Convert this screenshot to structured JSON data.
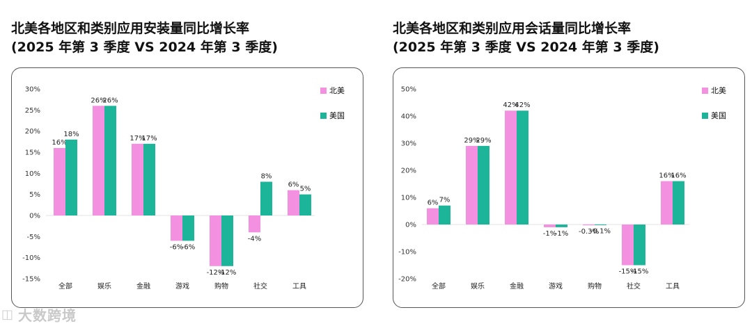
{
  "colors": {
    "north_america": "#f390e0",
    "usa": "#1db59a"
  },
  "watermark": {
    "icon": "wechat-logo-icon",
    "text": "大数跨境"
  },
  "chart_data": [
    {
      "type": "bar",
      "title_line1": "北美各地区和类别应用安装量同比增长率",
      "title_line2": "(2025 年第 3 季度 VS 2024 年第 3 季度)",
      "categories": [
        "全部",
        "娱乐",
        "金融",
        "游戏",
        "购物",
        "社交",
        "工具"
      ],
      "series": [
        {
          "name": "北美",
          "values": [
            16,
            26,
            17,
            -6,
            -12,
            -4,
            6
          ],
          "labels": [
            "16%",
            "26%",
            "17%",
            "-6%",
            "-12%",
            "-4%",
            "6%"
          ]
        },
        {
          "name": "美国",
          "values": [
            18,
            26,
            17,
            -6,
            -12,
            8,
            5
          ],
          "labels": [
            "18%",
            "26%",
            "17%",
            "-6%",
            "-12%",
            "8%",
            "5%"
          ]
        }
      ],
      "ylim": [
        -15,
        30
      ],
      "yticks": [
        30,
        25,
        20,
        15,
        10,
        5,
        0,
        -5,
        -10,
        -15
      ],
      "ytick_labels": [
        "30%",
        "25%",
        "20%",
        "15%",
        "10%",
        "5%",
        "0%",
        "-5%",
        "-10%",
        "-15%"
      ],
      "grid": false,
      "legend": "top-right"
    },
    {
      "type": "bar",
      "title_line1": "北美各地区和类别应用会话量同比增长率",
      "title_line2": "(2025 年第 3 季度 VS 2024 年第 3 季度)",
      "categories": [
        "全部",
        "娱乐",
        "金融",
        "游戏",
        "购物",
        "社交",
        "工具"
      ],
      "series": [
        {
          "name": "北美",
          "values": [
            6,
            29,
            42,
            -1,
            -0.3,
            -15,
            16
          ],
          "labels": [
            "6%",
            "29%",
            "42%",
            "-1%",
            "-0.3%",
            "-15%",
            "16%"
          ]
        },
        {
          "name": "美国",
          "values": [
            7,
            29,
            42,
            -1,
            -0.1,
            -15,
            16
          ],
          "labels": [
            "7%",
            "29%",
            "42%",
            "-1%",
            "-0.1%",
            "-15%",
            "16%"
          ]
        }
      ],
      "ylim": [
        -20,
        50
      ],
      "yticks": [
        50,
        40,
        30,
        20,
        10,
        0,
        -10,
        -20
      ],
      "ytick_labels": [
        "50%",
        "40%",
        "30%",
        "20%",
        "10%",
        "0%",
        "-10%",
        "-20%"
      ],
      "grid": false,
      "legend": "top-right"
    }
  ]
}
